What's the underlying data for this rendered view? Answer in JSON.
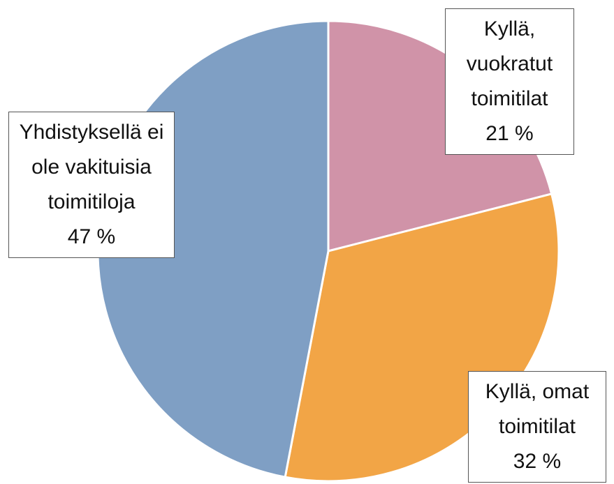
{
  "chart_data": {
    "type": "pie",
    "categories": [
      "Kyllä, vuokratut toimitilat",
      "Kyllä, omat toimitilat",
      "Yhdistyksellä ei ole vakituisia toimitiloja"
    ],
    "values": [
      21,
      32,
      47
    ],
    "value_labels": [
      "21 %",
      "32 %",
      "47 %"
    ],
    "colors": [
      "#d093a8",
      "#f2a546",
      "#7f9fc4"
    ]
  }
}
